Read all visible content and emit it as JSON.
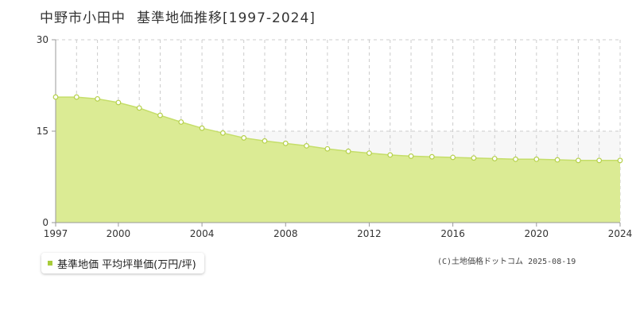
{
  "title": {
    "place": "中野市小田中",
    "subject": "基準地価推移[1997-2024]"
  },
  "legend": {
    "label": "基準地価 平均坪単価(万円/坪)"
  },
  "copyright": "(C)土地価格ドットコム 2025-08-19",
  "colors": {
    "fill": "#dbeb94",
    "line": "#c5de6a",
    "marker_fill": "#ffffff",
    "marker_stroke": "#b5d04a",
    "legend_swatch": "#a8cc3a",
    "grid": "#cccccc",
    "axis_text": "#333333",
    "band": "#f7f7f7"
  },
  "chart_data": {
    "type": "area",
    "x": [
      1997,
      1998,
      1999,
      2000,
      2001,
      2002,
      2003,
      2004,
      2005,
      2006,
      2007,
      2008,
      2009,
      2010,
      2011,
      2012,
      2013,
      2014,
      2015,
      2016,
      2017,
      2018,
      2019,
      2020,
      2021,
      2022,
      2023,
      2024
    ],
    "series": [
      {
        "name": "基準地価 平均坪単価(万円/坪)",
        "values": [
          20.6,
          20.6,
          20.3,
          19.7,
          18.8,
          17.6,
          16.5,
          15.5,
          14.7,
          13.9,
          13.4,
          13.0,
          12.6,
          12.1,
          11.7,
          11.4,
          11.1,
          10.9,
          10.8,
          10.7,
          10.6,
          10.5,
          10.4,
          10.4,
          10.3,
          10.2,
          10.2,
          10.2
        ]
      }
    ],
    "xlim": [
      1997,
      2024
    ],
    "ylim": [
      0,
      30
    ],
    "y_ticks": [
      0,
      15,
      30
    ],
    "x_tick_labels": [
      1997,
      2000,
      2004,
      2008,
      2012,
      2016,
      2020,
      2024
    ],
    "x_grid_step": 1,
    "grid": true,
    "legend_position": "bottom-left"
  }
}
